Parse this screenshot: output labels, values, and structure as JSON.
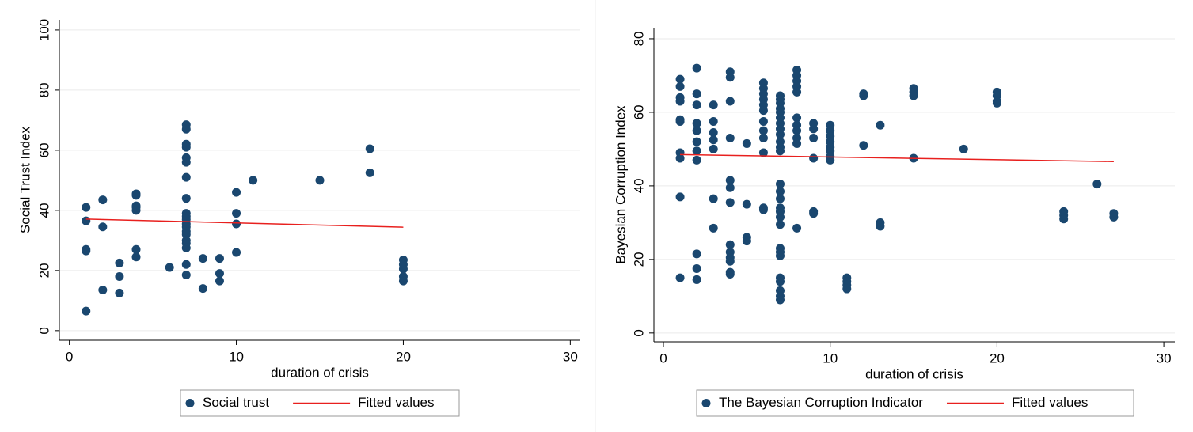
{
  "chart_data": [
    {
      "type": "scatter",
      "x_label": "duration of crisis",
      "y_label": "Social Trust Index",
      "xlim": [
        -0.6,
        30.6
      ],
      "ylim": [
        -3.2,
        103.4
      ],
      "xticks": [
        0,
        10,
        20,
        30
      ],
      "yticks": [
        0,
        20,
        40,
        60,
        80,
        100
      ],
      "grid": true,
      "legend": "bottom",
      "series": [
        {
          "name": "Social trust",
          "color": "#1a476f",
          "x": [
            1,
            1,
            1,
            1,
            1,
            2,
            2,
            2,
            3,
            3,
            3,
            4,
            4,
            4,
            4,
            4,
            4,
            4,
            6,
            7,
            7,
            7,
            7,
            7,
            7,
            7,
            7,
            7,
            7,
            7,
            7,
            7,
            7,
            7,
            7,
            7,
            7,
            7,
            7,
            8,
            8,
            9,
            9,
            9,
            10,
            10,
            10,
            10,
            11,
            15,
            18,
            18,
            20,
            20,
            20,
            20,
            20
          ],
          "values": [
            41,
            36.5,
            27,
            26.5,
            6.5,
            43.5,
            34.5,
            13.5,
            22.5,
            18,
            12.5,
            45.5,
            45,
            41.5,
            41,
            40,
            27,
            24.5,
            21,
            68.5,
            67,
            62,
            61,
            57.5,
            56,
            51,
            44,
            39,
            38,
            37,
            35.5,
            34.5,
            33,
            32,
            30,
            29,
            27.5,
            22,
            18.5,
            24,
            14,
            24,
            19,
            16.5,
            46,
            39,
            35.5,
            26,
            50,
            50,
            60.5,
            52.5,
            23.5,
            22,
            20.5,
            18,
            16.5
          ]
        },
        {
          "name": "Fitted values",
          "color": "#e8201e",
          "type": "line",
          "x": [
            1,
            20
          ],
          "values": [
            37.1,
            34.4
          ]
        }
      ]
    },
    {
      "type": "scatter",
      "x_label": "duration of crisis",
      "y_label": "Bayesian Corruption Index",
      "xlim": [
        -0.57,
        30.66
      ],
      "ylim": [
        -2.4,
        83
      ],
      "xticks": [
        0,
        10,
        20,
        30
      ],
      "yticks": [
        0,
        20,
        40,
        60,
        80
      ],
      "grid": true,
      "legend": "bottom",
      "series": [
        {
          "name": "The Bayesian Corruption Indicator",
          "color": "#1a476f",
          "x": [
            1,
            1,
            1,
            1,
            1,
            1,
            1,
            1,
            1,
            1,
            2,
            2,
            2,
            2,
            2,
            2,
            2,
            2,
            2,
            2,
            2,
            3,
            3,
            3,
            3,
            3,
            3,
            3,
            4,
            4,
            4,
            4,
            4,
            4,
            4,
            4,
            4,
            4,
            4,
            4,
            4,
            5,
            5,
            5,
            5,
            6,
            6,
            6,
            6,
            6,
            6,
            6,
            6,
            6,
            6,
            6,
            6,
            7,
            7,
            7,
            7,
            7,
            7,
            7,
            7,
            7,
            7,
            7,
            7,
            7,
            7,
            7,
            7,
            7,
            7,
            7,
            7,
            7,
            7,
            7,
            7,
            7,
            7,
            7,
            8,
            8,
            8,
            8,
            8,
            8,
            8,
            8,
            8,
            8,
            8,
            9,
            9,
            9,
            9,
            9,
            9,
            10,
            10,
            10,
            10,
            10,
            10,
            10,
            10,
            11,
            11,
            11,
            11,
            12,
            12,
            12,
            13,
            13,
            13,
            15,
            15,
            15,
            15,
            18,
            20,
            20,
            20,
            20,
            24,
            24,
            24,
            26,
            27,
            27
          ],
          "values": [
            69,
            67,
            64,
            63,
            58,
            57.5,
            49,
            47.5,
            37,
            15,
            72,
            65,
            62,
            57,
            55,
            52,
            49.5,
            47,
            21.5,
            17.5,
            14.5,
            62,
            57.5,
            54.5,
            52.5,
            50,
            36.5,
            28.5,
            71,
            69.5,
            63,
            53,
            41.5,
            39.5,
            35.5,
            24,
            22,
            20.5,
            19.5,
            16.5,
            16,
            51.5,
            35,
            26,
            25,
            68,
            66.5,
            65,
            63.5,
            62,
            60.5,
            57.5,
            55,
            53,
            49,
            34,
            33.5,
            64.5,
            63.5,
            62.5,
            61,
            60,
            58.5,
            57,
            55.5,
            54,
            52,
            50.5,
            49.5,
            40.5,
            38.5,
            36.5,
            34,
            33,
            31.5,
            29.5,
            23,
            22,
            21,
            15,
            14,
            11.5,
            10,
            9,
            71.5,
            70,
            68.5,
            67,
            65.5,
            58.5,
            56.5,
            55,
            53,
            51.5,
            28.5,
            57,
            55.5,
            53,
            47.5,
            33,
            32.5,
            56.5,
            55,
            53.5,
            52,
            50.5,
            49.5,
            48,
            47,
            15,
            14,
            13,
            12,
            65,
            64.5,
            51,
            56.5,
            30,
            29,
            66.5,
            65.5,
            64.5,
            47.5,
            50,
            65.5,
            64.5,
            63,
            62.5,
            33,
            32,
            31,
            40.5,
            32.5,
            31.5
          ]
        },
        {
          "name": "Fitted values",
          "color": "#e8201e",
          "type": "line",
          "x": [
            1,
            27
          ],
          "values": [
            48.5,
            46.6
          ]
        }
      ]
    }
  ]
}
